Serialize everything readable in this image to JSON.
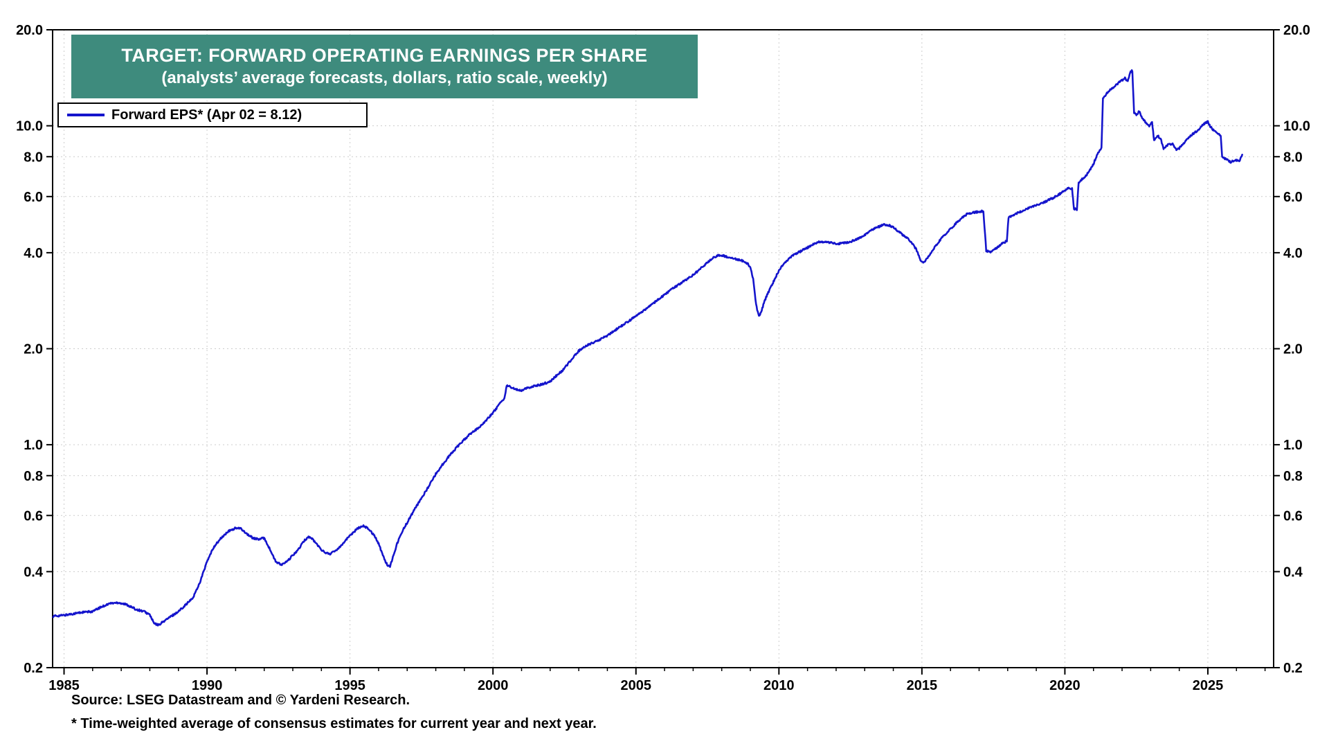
{
  "title": {
    "line1": "TARGET: FORWARD OPERATING EARNINGS PER SHARE",
    "line2": "(analysts’ average forecasts, dollars, ratio scale, weekly)"
  },
  "legend": {
    "label": "Forward EPS* (Apr 02 = 8.12)"
  },
  "footer": {
    "source": "Source: LSEG Datastream and © Yardeni Research.",
    "note": "* Time-weighted average of consensus estimates for current year and next year."
  },
  "colors": {
    "line": "#1414cc",
    "title_bg": "#3e8b7d",
    "title_text": "#ffffff",
    "grid": "#cccccc",
    "frame": "#000000"
  },
  "chart_data": {
    "type": "line",
    "title": "TARGET: FORWARD OPERATING EARNINGS PER SHARE",
    "subtitle": "(analysts’ average forecasts, dollars, ratio scale, weekly)",
    "series_name": "Forward EPS* (Apr 02 = 8.12)",
    "scale": "log",
    "grid": true,
    "legend_position": "top-left",
    "x_range": [
      1984.6,
      2027.3
    ],
    "y_range": [
      0.2,
      20
    ],
    "x_ticks": [
      1985,
      1990,
      1995,
      2000,
      2005,
      2010,
      2015,
      2020,
      2025
    ],
    "y_ticks": [
      {
        "v": 20,
        "label": "20.0"
      },
      {
        "v": 10,
        "label": "10.0"
      },
      {
        "v": 8,
        "label": "8.0"
      },
      {
        "v": 6,
        "label": "6.0"
      },
      {
        "v": 4,
        "label": "4.0"
      },
      {
        "v": 2,
        "label": "2.0"
      },
      {
        "v": 1,
        "label": "1.0"
      },
      {
        "v": 0.8,
        "label": "0.8"
      },
      {
        "v": 0.6,
        "label": "0.6"
      },
      {
        "v": 0.4,
        "label": "0.4"
      },
      {
        "v": 0.2,
        "label": "0.2"
      }
    ],
    "latest": {
      "date_label": "Apr 02",
      "value": 8.12
    },
    "points": [
      [
        1984.62,
        0.29
      ],
      [
        1985.0,
        0.292
      ],
      [
        1985.3,
        0.295
      ],
      [
        1985.6,
        0.298
      ],
      [
        1986.0,
        0.3
      ],
      [
        1986.3,
        0.31
      ],
      [
        1986.6,
        0.318
      ],
      [
        1986.9,
        0.32
      ],
      [
        1987.2,
        0.315
      ],
      [
        1987.5,
        0.305
      ],
      [
        1987.8,
        0.3
      ],
      [
        1988.0,
        0.293
      ],
      [
        1988.15,
        0.275
      ],
      [
        1988.3,
        0.272
      ],
      [
        1988.5,
        0.28
      ],
      [
        1988.75,
        0.29
      ],
      [
        1989.0,
        0.3
      ],
      [
        1989.25,
        0.315
      ],
      [
        1989.5,
        0.33
      ],
      [
        1989.75,
        0.37
      ],
      [
        1990.0,
        0.43
      ],
      [
        1990.25,
        0.48
      ],
      [
        1990.5,
        0.51
      ],
      [
        1990.75,
        0.535
      ],
      [
        1991.0,
        0.548
      ],
      [
        1991.2,
        0.545
      ],
      [
        1991.4,
        0.525
      ],
      [
        1991.6,
        0.51
      ],
      [
        1991.8,
        0.505
      ],
      [
        1992.0,
        0.51
      ],
      [
        1992.2,
        0.47
      ],
      [
        1992.4,
        0.43
      ],
      [
        1992.6,
        0.42
      ],
      [
        1992.8,
        0.43
      ],
      [
        1993.0,
        0.45
      ],
      [
        1993.2,
        0.47
      ],
      [
        1993.4,
        0.5
      ],
      [
        1993.55,
        0.515
      ],
      [
        1993.7,
        0.505
      ],
      [
        1993.9,
        0.48
      ],
      [
        1994.1,
        0.46
      ],
      [
        1994.3,
        0.455
      ],
      [
        1994.5,
        0.465
      ],
      [
        1994.75,
        0.49
      ],
      [
        1995.0,
        0.52
      ],
      [
        1995.25,
        0.545
      ],
      [
        1995.45,
        0.558
      ],
      [
        1995.65,
        0.545
      ],
      [
        1995.85,
        0.52
      ],
      [
        1996.0,
        0.49
      ],
      [
        1996.15,
        0.45
      ],
      [
        1996.3,
        0.42
      ],
      [
        1996.4,
        0.415
      ],
      [
        1996.5,
        0.445
      ],
      [
        1996.65,
        0.49
      ],
      [
        1996.8,
        0.53
      ],
      [
        1997.0,
        0.57
      ],
      [
        1997.25,
        0.625
      ],
      [
        1997.5,
        0.68
      ],
      [
        1997.75,
        0.74
      ],
      [
        1998.0,
        0.81
      ],
      [
        1998.25,
        0.87
      ],
      [
        1998.5,
        0.93
      ],
      [
        1998.75,
        0.985
      ],
      [
        1999.0,
        1.04
      ],
      [
        1999.25,
        1.09
      ],
      [
        1999.5,
        1.13
      ],
      [
        1999.75,
        1.19
      ],
      [
        2000.0,
        1.26
      ],
      [
        2000.2,
        1.33
      ],
      [
        2000.4,
        1.4
      ],
      [
        2000.48,
        1.53
      ],
      [
        2000.6,
        1.52
      ],
      [
        2000.8,
        1.49
      ],
      [
        2001.0,
        1.48
      ],
      [
        2001.25,
        1.51
      ],
      [
        2001.5,
        1.53
      ],
      [
        2001.75,
        1.55
      ],
      [
        2002.0,
        1.58
      ],
      [
        2002.2,
        1.64
      ],
      [
        2002.4,
        1.7
      ],
      [
        2002.6,
        1.78
      ],
      [
        2002.8,
        1.88
      ],
      [
        2003.0,
        1.97
      ],
      [
        2003.25,
        2.04
      ],
      [
        2003.5,
        2.09
      ],
      [
        2003.75,
        2.14
      ],
      [
        2004.0,
        2.2
      ],
      [
        2004.25,
        2.28
      ],
      [
        2004.5,
        2.36
      ],
      [
        2004.75,
        2.44
      ],
      [
        2005.0,
        2.53
      ],
      [
        2005.25,
        2.62
      ],
      [
        2005.5,
        2.73
      ],
      [
        2005.75,
        2.84
      ],
      [
        2006.0,
        2.95
      ],
      [
        2006.25,
        3.07
      ],
      [
        2006.5,
        3.18
      ],
      [
        2006.75,
        3.29
      ],
      [
        2007.0,
        3.4
      ],
      [
        2007.25,
        3.56
      ],
      [
        2007.5,
        3.73
      ],
      [
        2007.75,
        3.88
      ],
      [
        2007.95,
        3.94
      ],
      [
        2008.1,
        3.9
      ],
      [
        2008.3,
        3.85
      ],
      [
        2008.5,
        3.82
      ],
      [
        2008.7,
        3.78
      ],
      [
        2008.9,
        3.7
      ],
      [
        2009.0,
        3.6
      ],
      [
        2009.1,
        3.3
      ],
      [
        2009.2,
        2.75
      ],
      [
        2009.3,
        2.52
      ],
      [
        2009.4,
        2.65
      ],
      [
        2009.55,
        2.9
      ],
      [
        2009.7,
        3.1
      ],
      [
        2009.85,
        3.3
      ],
      [
        2010.0,
        3.52
      ],
      [
        2010.2,
        3.72
      ],
      [
        2010.4,
        3.87
      ],
      [
        2010.6,
        3.98
      ],
      [
        2010.8,
        4.06
      ],
      [
        2011.0,
        4.15
      ],
      [
        2011.2,
        4.26
      ],
      [
        2011.4,
        4.32
      ],
      [
        2011.6,
        4.33
      ],
      [
        2011.8,
        4.3
      ],
      [
        2012.0,
        4.26
      ],
      [
        2012.2,
        4.28
      ],
      [
        2012.5,
        4.33
      ],
      [
        2012.75,
        4.42
      ],
      [
        2013.0,
        4.55
      ],
      [
        2013.25,
        4.72
      ],
      [
        2013.5,
        4.83
      ],
      [
        2013.7,
        4.9
      ],
      [
        2013.85,
        4.87
      ],
      [
        2014.0,
        4.8
      ],
      [
        2014.2,
        4.65
      ],
      [
        2014.4,
        4.5
      ],
      [
        2014.6,
        4.35
      ],
      [
        2014.8,
        4.1
      ],
      [
        2014.95,
        3.8
      ],
      [
        2015.05,
        3.72
      ],
      [
        2015.2,
        3.85
      ],
      [
        2015.4,
        4.1
      ],
      [
        2015.6,
        4.35
      ],
      [
        2015.8,
        4.55
      ],
      [
        2016.0,
        4.75
      ],
      [
        2016.2,
        4.95
      ],
      [
        2016.4,
        5.15
      ],
      [
        2016.6,
        5.3
      ],
      [
        2016.8,
        5.35
      ],
      [
        2017.0,
        5.38
      ],
      [
        2017.15,
        5.4
      ],
      [
        2017.25,
        4.05
      ],
      [
        2017.4,
        4.02
      ],
      [
        2017.55,
        4.1
      ],
      [
        2017.7,
        4.2
      ],
      [
        2017.85,
        4.3
      ],
      [
        2017.97,
        4.35
      ],
      [
        2018.03,
        5.15
      ],
      [
        2018.2,
        5.25
      ],
      [
        2018.4,
        5.35
      ],
      [
        2018.6,
        5.45
      ],
      [
        2018.8,
        5.55
      ],
      [
        2019.0,
        5.62
      ],
      [
        2019.2,
        5.72
      ],
      [
        2019.4,
        5.83
      ],
      [
        2019.6,
        5.95
      ],
      [
        2019.8,
        6.1
      ],
      [
        2020.0,
        6.28
      ],
      [
        2020.15,
        6.4
      ],
      [
        2020.25,
        6.35
      ],
      [
        2020.32,
        5.5
      ],
      [
        2020.42,
        5.45
      ],
      [
        2020.48,
        6.6
      ],
      [
        2020.6,
        6.8
      ],
      [
        2020.75,
        7.0
      ],
      [
        2020.9,
        7.3
      ],
      [
        2021.0,
        7.6
      ],
      [
        2021.1,
        8.0
      ],
      [
        2021.2,
        8.35
      ],
      [
        2021.28,
        8.5
      ],
      [
        2021.33,
        12.2
      ],
      [
        2021.45,
        12.6
      ],
      [
        2021.6,
        13.0
      ],
      [
        2021.75,
        13.3
      ],
      [
        2021.9,
        13.7
      ],
      [
        2022.0,
        13.9
      ],
      [
        2022.1,
        14.1
      ],
      [
        2022.2,
        13.8
      ],
      [
        2022.28,
        14.7
      ],
      [
        2022.36,
        14.9
      ],
      [
        2022.42,
        11.0
      ],
      [
        2022.5,
        10.8
      ],
      [
        2022.6,
        11.1
      ],
      [
        2022.7,
        10.6
      ],
      [
        2022.85,
        10.2
      ],
      [
        2022.95,
        10.0
      ],
      [
        2023.05,
        10.3
      ],
      [
        2023.12,
        9.0
      ],
      [
        2023.25,
        9.3
      ],
      [
        2023.35,
        9.1
      ],
      [
        2023.45,
        8.5
      ],
      [
        2023.6,
        8.7
      ],
      [
        2023.75,
        8.8
      ],
      [
        2023.9,
        8.4
      ],
      [
        2024.0,
        8.5
      ],
      [
        2024.15,
        8.8
      ],
      [
        2024.3,
        9.1
      ],
      [
        2024.45,
        9.4
      ],
      [
        2024.6,
        9.6
      ],
      [
        2024.75,
        9.9
      ],
      [
        2024.9,
        10.2
      ],
      [
        2025.0,
        10.3
      ],
      [
        2025.1,
        9.9
      ],
      [
        2025.25,
        9.6
      ],
      [
        2025.45,
        9.35
      ],
      [
        2025.5,
        7.95
      ],
      [
        2025.65,
        7.85
      ],
      [
        2025.8,
        7.7
      ],
      [
        2025.95,
        7.8
      ],
      [
        2026.1,
        7.75
      ],
      [
        2026.2,
        8.12
      ]
    ]
  }
}
